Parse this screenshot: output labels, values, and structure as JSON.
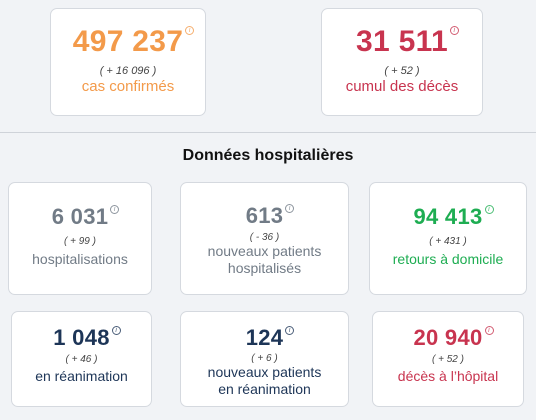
{
  "colors": {
    "orange": "#f39a4a",
    "crimson": "#c8344f",
    "grey": "#717b86",
    "green": "#1ead52",
    "navy": "#1d3557"
  },
  "top_cards": [
    {
      "value": "497 237",
      "delta": "( + 16 096 )",
      "label": "cas confirmés",
      "info_icon": "info-icon"
    },
    {
      "value": "31 511",
      "delta": "( + 52 )",
      "label": "cumul des décès",
      "info_icon": "info-icon"
    }
  ],
  "section": {
    "title": "Données hospitalières"
  },
  "hospital_cards": [
    {
      "value": "6 031",
      "delta": "( + 99 )",
      "label": "hospitalisations"
    },
    {
      "value": "613",
      "delta": "( - 36 )",
      "label_line1": "nouveaux patients",
      "label_line2": "hospitalisés"
    },
    {
      "value": "94 413",
      "delta": "( + 431 )",
      "label": "retours à domicile"
    },
    {
      "value": "1 048",
      "delta": "( + 46 )",
      "label": "en réanimation"
    },
    {
      "value": "124",
      "delta": "( + 6 )",
      "label_line1": "nouveaux patients",
      "label_line2": "en réanimation"
    },
    {
      "value": "20 940",
      "delta": "( + 52 )",
      "label": "décès à l’hôpital"
    }
  ]
}
